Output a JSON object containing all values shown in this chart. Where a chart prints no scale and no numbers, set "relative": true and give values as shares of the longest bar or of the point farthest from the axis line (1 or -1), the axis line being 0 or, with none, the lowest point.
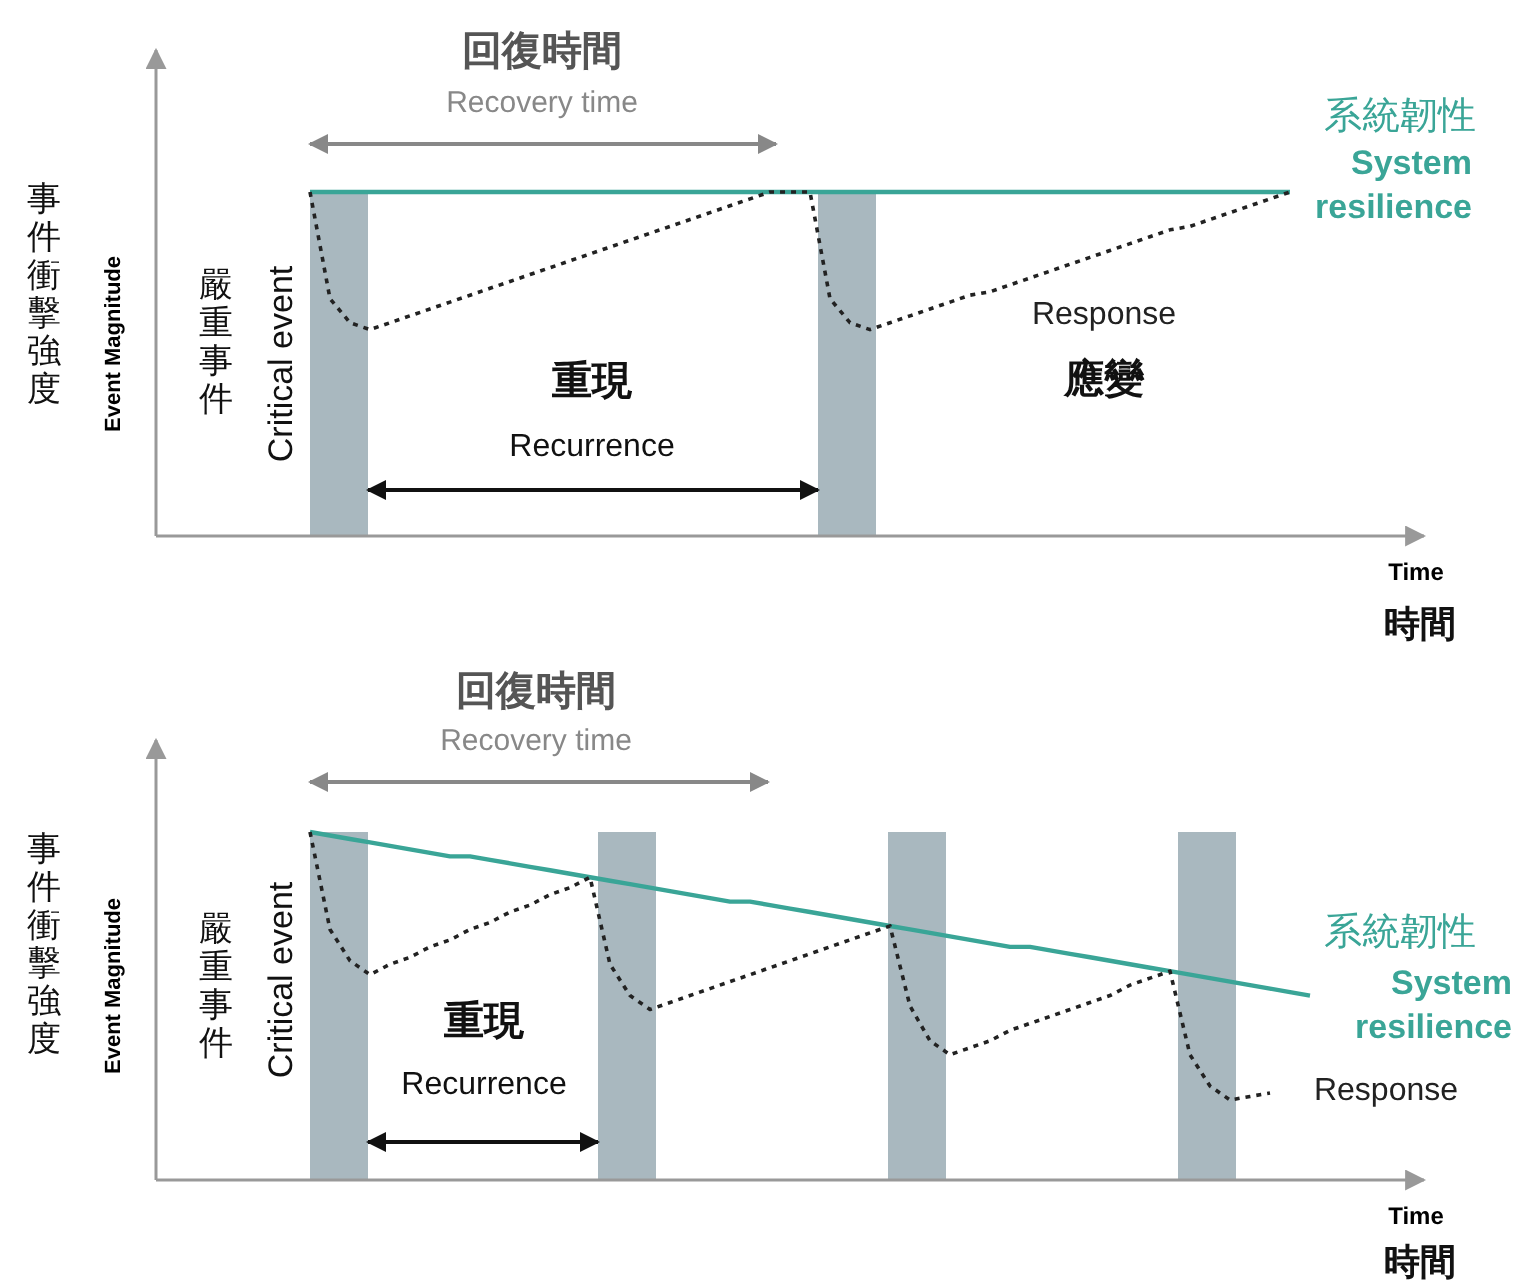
{
  "chart_data": [
    {
      "type": "line",
      "relative": true,
      "xlabel": "Time",
      "ylabel": "Event Magnitude",
      "categories": [
        null,
        null,
        null,
        null,
        null,
        null,
        null,
        null,
        null,
        null,
        null,
        null,
        null,
        null,
        null,
        null,
        null,
        null,
        null,
        null,
        null,
        null,
        null,
        null,
        null,
        null,
        null,
        null,
        null,
        null,
        null,
        null,
        null,
        null,
        null,
        null,
        null,
        null,
        null,
        null,
        null,
        null,
        null,
        null,
        null,
        null,
        null,
        null,
        null,
        null,
        null
      ],
      "series": [
        {
          "name": "System resilience",
          "color": "#3aa597",
          "line_style": "solid",
          "values": [
            1,
            1,
            1,
            1,
            1,
            1,
            1,
            1,
            1,
            1,
            1,
            1,
            1,
            1,
            1,
            1,
            1,
            1,
            1,
            1,
            1,
            1,
            1,
            1,
            1,
            1,
            1,
            1,
            1,
            1,
            1,
            1,
            1,
            1,
            1,
            1,
            1,
            1,
            1,
            1,
            1,
            1,
            1,
            1,
            1,
            1,
            1,
            1,
            1,
            1,
            null
          ]
        },
        {
          "name": "Response",
          "color": "#222222",
          "line_style": "dotted",
          "values": [
            1,
            0.69,
            0.62,
            0.6,
            0.62,
            0.64,
            0.66,
            0.68,
            0.7,
            0.72,
            0.74,
            0.76,
            0.78,
            0.8,
            0.82,
            0.84,
            0.86,
            0.88,
            0.9,
            0.92,
            0.94,
            0.96,
            0.98,
            1,
            1,
            1,
            0.69,
            0.62,
            0.6,
            0.62,
            0.64,
            0.66,
            0.68,
            0.7,
            0.71,
            0.73,
            0.75,
            0.77,
            0.79,
            0.81,
            0.83,
            0.85,
            0.87,
            0.89,
            0.9,
            0.92,
            0.94,
            0.96,
            0.98,
            1,
            null
          ]
        }
      ],
      "annotations": [
        "回復時間",
        "Recovery time",
        "重現",
        "Recurrence",
        "應變",
        "系統韌性",
        "事件衝擊強度",
        "時間",
        "嚴重事件",
        "Critical event"
      ]
    },
    {
      "type": "line",
      "relative": true,
      "xlabel": "Time",
      "ylabel": "Event Magnitude",
      "categories": [
        null,
        null,
        null,
        null,
        null,
        null,
        null,
        null,
        null,
        null,
        null,
        null,
        null,
        null,
        null,
        null,
        null,
        null,
        null,
        null,
        null,
        null,
        null,
        null,
        null,
        null,
        null,
        null,
        null,
        null,
        null,
        null,
        null,
        null,
        null,
        null,
        null,
        null,
        null,
        null,
        null,
        null,
        null,
        null,
        null,
        null,
        null,
        null,
        null,
        null,
        null
      ],
      "series": [
        {
          "name": "System resilience",
          "color": "#3aa597",
          "line_style": "solid",
          "values": [
            1,
            0.99,
            0.98,
            0.97,
            0.96,
            0.95,
            0.94,
            0.93,
            0.93,
            0.92,
            0.91,
            0.9,
            0.89,
            0.88,
            0.87,
            0.86,
            0.85,
            0.84,
            0.83,
            0.82,
            0.81,
            0.8,
            0.8,
            0.79,
            0.78,
            0.77,
            0.76,
            0.75,
            0.74,
            0.73,
            0.72,
            0.71,
            0.7,
            0.69,
            0.68,
            0.67,
            0.67,
            0.66,
            0.65,
            0.64,
            0.63,
            0.62,
            0.61,
            0.6,
            0.59,
            0.58,
            0.57,
            0.56,
            0.55,
            0.54,
            0.53
          ]
        },
        {
          "name": "Response",
          "color": "#222222",
          "line_style": "dotted",
          "values": [
            1,
            0.72,
            0.63,
            0.59,
            0.62,
            0.64,
            0.67,
            0.69,
            0.72,
            0.74,
            0.77,
            0.79,
            0.82,
            0.84,
            0.87,
            0.62,
            0.53,
            0.49,
            0.51,
            0.53,
            0.55,
            0.57,
            0.59,
            0.61,
            0.63,
            0.65,
            0.67,
            0.69,
            0.71,
            0.73,
            0.5,
            0.4,
            0.36,
            0.38,
            0.4,
            0.43,
            0.45,
            0.47,
            0.49,
            0.51,
            0.53,
            0.56,
            0.58,
            0.6,
            0.36,
            0.27,
            0.23,
            0.24,
            0.25,
            null,
            null
          ]
        }
      ],
      "annotations": [
        "回復時間",
        "Recovery time",
        "重現",
        "Recurrence",
        "系統韌性",
        "事件衝擊強度",
        "時間",
        "嚴重事件",
        "Critical event"
      ]
    }
  ]
}
